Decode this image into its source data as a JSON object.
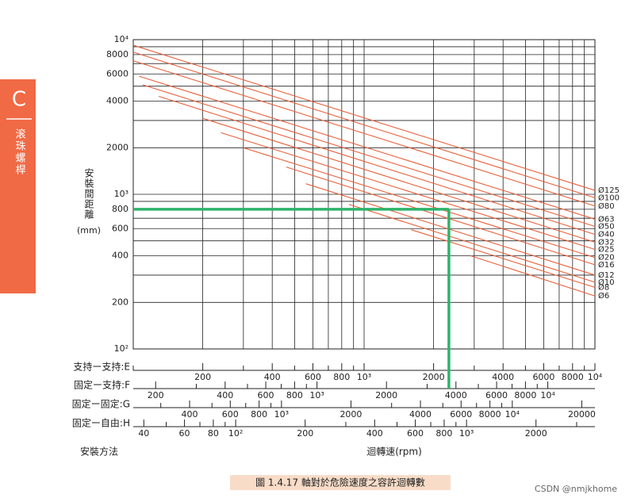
{
  "side_tab": {
    "letter": "C",
    "title": "滚珠螺桿"
  },
  "chart_data": {
    "type": "line",
    "xscale": "log",
    "yscale": "log",
    "y_label": "安裝間距離",
    "y_unit": "(mm)",
    "x_label": "迴轉速(rpm)",
    "method_label": "安裝方法",
    "caption": "圖 1.4.17 軸對於危險速度之容許迴轉數",
    "ylim": [
      100,
      10000
    ],
    "yticks": [
      {
        "value": 100,
        "label": "10²"
      },
      200,
      400,
      600,
      800,
      {
        "value": 1000,
        "label": "10³"
      },
      2000,
      4000,
      6000,
      8000,
      {
        "value": 10000,
        "label": "10⁴"
      }
    ],
    "yminor": [
      300,
      500,
      700,
      900,
      3000,
      5000,
      7000,
      9000
    ],
    "grid": true,
    "scales": [
      {
        "label": "支持ー支持:E",
        "xlim": [
          100,
          10000
        ],
        "ticks": [
          200,
          400,
          600,
          800,
          {
            "value": 1000,
            "label": "10³"
          },
          2000,
          4000,
          6000,
          8000,
          {
            "value": 10000,
            "label": "10⁴"
          }
        ],
        "minor": [
          100,
          300,
          500,
          700,
          900,
          3000,
          5000,
          7000,
          9000
        ]
      },
      {
        "label": "固定ー支持:F",
        "xlim": [
          160,
          16000
        ],
        "ticks": [
          200,
          400,
          600,
          800,
          {
            "value": 1000,
            "label": "10³"
          },
          2000,
          4000,
          6000,
          8000,
          {
            "value": 10000,
            "label": "10⁴"
          }
        ],
        "minor": [
          300,
          500,
          700,
          900,
          3000,
          5000,
          7000,
          9000
        ]
      },
      {
        "label": "固定ー固定:G",
        "xlim": [
          228,
          22800
        ],
        "ticks": [
          400,
          600,
          800,
          {
            "value": 1000,
            "label": "10³"
          },
          2000,
          4000,
          6000,
          8000,
          {
            "value": 10000,
            "label": "10⁴"
          },
          20000
        ],
        "minor": [
          300,
          500,
          700,
          900,
          3000,
          5000,
          7000,
          9000
        ]
      },
      {
        "label": "固定ー自由:H",
        "xlim": [
          36,
          3600
        ],
        "ticks": [
          40,
          60,
          80,
          {
            "value": 100,
            "label": "10²"
          },
          200,
          400,
          600,
          800,
          {
            "value": 1000,
            "label": "10³"
          },
          2000
        ],
        "minor": [
          50,
          70,
          90,
          300,
          500,
          700,
          900,
          3000
        ]
      }
    ],
    "series": [
      {
        "name": "Ø125",
        "color": "#e8603c",
        "x": [
          100,
          10000
        ],
        "values": [
          9200,
          1060
        ]
      },
      {
        "name": "Ø100",
        "color": "#e8603c",
        "x": [
          100,
          10000
        ],
        "values": [
          8300,
          950
        ]
      },
      {
        "name": "Ø80",
        "color": "#e8603c",
        "x": [
          100,
          10000
        ],
        "values": [
          7300,
          840
        ]
      },
      {
        "name": "Ø63",
        "color": "#e8603c",
        "x": [
          106,
          10000
        ],
        "values": [
          5800,
          690
        ]
      },
      {
        "name": "Ø50",
        "color": "#e8603c",
        "x": [
          110,
          10000
        ],
        "values": [
          5100,
          620
        ]
      },
      {
        "name": "Ø40",
        "color": "#e8603c",
        "x": [
          129,
          10000
        ],
        "values": [
          4300,
          550
        ]
      },
      {
        "name": "Ø32",
        "color": "#e8603c",
        "x": [
          200,
          10000
        ],
        "values": [
          3100,
          490
        ]
      },
      {
        "name": "Ø25",
        "color": "#e8603c",
        "x": [
          240,
          10000
        ],
        "values": [
          2500,
          440
        ]
      },
      {
        "name": "Ø20",
        "color": "#e8603c",
        "x": [
          300,
          10000
        ],
        "values": [
          2000,
          390
        ]
      },
      {
        "name": "Ø16",
        "color": "#e8603c",
        "x": [
          460,
          10000
        ],
        "values": [
          1500,
          350
        ]
      },
      {
        "name": "Ø12",
        "color": "#e8603c",
        "x": [
          560,
          10000
        ],
        "values": [
          1170,
          300
        ]
      },
      {
        "name": "Ø10",
        "color": "#e8603c",
        "x": [
          860,
          10000
        ],
        "values": [
          860,
          270
        ]
      },
      {
        "name": "Ø8",
        "color": "#e8603c",
        "x": [
          1600,
          10000
        ],
        "values": [
          590,
          250
        ]
      },
      {
        "name": "Ø6",
        "color": "#e8603c",
        "x": [
          2900,
          10000
        ],
        "values": [
          400,
          220
        ]
      }
    ],
    "guide": {
      "color": "#2eb36a",
      "x": 2330,
      "y": 800
    }
  },
  "watermark": "CSDN @nmjkhome"
}
